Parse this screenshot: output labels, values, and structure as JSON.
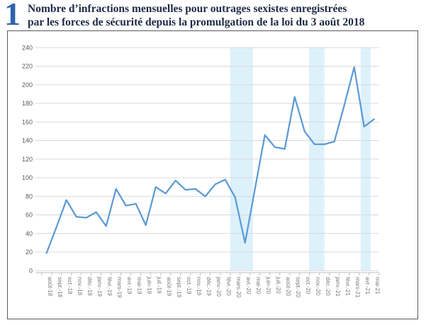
{
  "header": {
    "number": "1",
    "title_line1": "Nombre d’infractions mensuelles pour outrages sexistes enregistrées",
    "title_line2": "par les forces de sécurité depuis la promulgation de la loi du 3 août 2018"
  },
  "chart_data": {
    "type": "line",
    "title": "Nombre d’infractions mensuelles pour outrages sexistes enregistrées par les forces de sécurité depuis la promulgation de la loi du 3 août 2018",
    "xlabel": "",
    "ylabel": "",
    "ylim": [
      0,
      240
    ],
    "ytick_step": 20,
    "grid": "horizontal",
    "legend": "none",
    "categories": [
      "août-18",
      "sept.-18",
      "oct.-18",
      "nov.-18",
      "déc.-18",
      "janv.-19",
      "févr.-19",
      "mars-19",
      "avr.-19",
      "mai-19",
      "juin-19",
      "juil.-19",
      "août-19",
      "sept.-19",
      "oct.-19",
      "nov.-19",
      "déc.-19",
      "janv.-20",
      "févr.-20",
      "mars-20",
      "avr.-20",
      "mai-20",
      "juin-20",
      "juil.-20",
      "août-20",
      "sept.-20",
      "oct.-20",
      "nov.-20",
      "déc.-20",
      "janv.-21",
      "févr.-21",
      "mars-21",
      "avr.-21",
      "mai-21"
    ],
    "values": [
      19,
      47,
      76,
      58,
      57,
      63,
      48,
      88,
      70,
      72,
      49,
      90,
      83,
      97,
      87,
      88,
      80,
      93,
      98,
      79,
      30,
      88,
      146,
      133,
      131,
      187,
      150,
      136,
      136,
      139,
      178,
      219,
      155,
      163
    ],
    "highlight_bands": [
      {
        "from_month_index": 18.5,
        "to_month_index": 20.8
      },
      {
        "from_month_index": 26.45,
        "to_month_index": 28.0
      },
      {
        "from_month_index": 31.65,
        "to_month_index": 32.65
      }
    ],
    "colors": {
      "line": "#5b9bd5",
      "band": "#ddf1fb",
      "grid": "#d9d9d9",
      "axis": "#bfbfbf",
      "y_tick_label": "#595959",
      "x_tick_label": "#7a7a7a",
      "figure_number": "#2e62ad",
      "title_text": "#1e2a47",
      "box_border": "#58595b"
    }
  }
}
